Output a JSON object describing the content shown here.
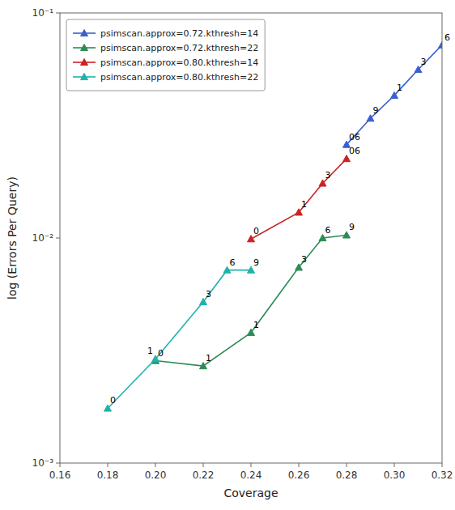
{
  "chart_data": {
    "type": "line",
    "xlabel": "Coverage",
    "ylabel": "log (Errors Per Query)",
    "log": "y",
    "xlim": [
      0.16,
      0.32
    ],
    "ylim": [
      0.001,
      0.1
    ],
    "xticks": [
      0.16,
      0.18,
      {
        "value": 0.2,
        "label": "0.20"
      },
      0.22,
      0.24,
      0.26,
      0.28,
      {
        "value": 0.3,
        "label": "0.30"
      },
      0.32
    ],
    "yticks": [
      {
        "value": 0.001,
        "label": "10⁻³"
      },
      {
        "value": 0.01,
        "label": "10⁻²"
      },
      {
        "value": 0.1,
        "label": "10⁻¹"
      }
    ],
    "grid": false,
    "legend": "upper left",
    "marker": "triangle",
    "series": [
      {
        "name": "psimscan.approx=0.72.kthresh=14",
        "color": "#3a5fcd",
        "x": [
          0.28,
          0.29,
          0.3,
          0.31,
          0.32
        ],
        "values": [
          0.026,
          0.034,
          0.043,
          0.056,
          0.072
        ],
        "annotations": [
          {
            "x": 0.28,
            "y": 0.026,
            "text": "06"
          },
          {
            "x": 0.29,
            "y": 0.034,
            "text": "9"
          },
          {
            "x": 0.3,
            "y": 0.043,
            "text": "1"
          },
          {
            "x": 0.31,
            "y": 0.056,
            "text": "3"
          },
          {
            "x": 0.32,
            "y": 0.072,
            "text": "6"
          }
        ]
      },
      {
        "name": "psimscan.approx=0.72.kthresh=22",
        "color": "#2e8b57",
        "x": [
          0.2,
          0.22,
          0.24,
          0.26,
          0.27,
          0.28
        ],
        "values": [
          0.00285,
          0.0027,
          0.0038,
          0.0074,
          0.01,
          0.0103
        ],
        "annotations": [
          {
            "x": 0.2,
            "y": 0.00285,
            "text": "0"
          },
          {
            "x": 0.22,
            "y": 0.0027,
            "text": "1"
          },
          {
            "x": 0.24,
            "y": 0.0038,
            "text": "1"
          },
          {
            "x": 0.26,
            "y": 0.0074,
            "text": "3"
          },
          {
            "x": 0.27,
            "y": 0.01,
            "text": "6"
          },
          {
            "x": 0.28,
            "y": 0.0103,
            "text": "9"
          }
        ]
      },
      {
        "name": "psimscan.approx=0.80.kthresh=14",
        "color": "#cc2222",
        "x": [
          0.24,
          0.26,
          0.27,
          0.28
        ],
        "values": [
          0.0099,
          0.013,
          0.0175,
          0.0225
        ],
        "annotations": [
          {
            "x": 0.24,
            "y": 0.0099,
            "text": "0"
          },
          {
            "x": 0.26,
            "y": 0.013,
            "text": "1"
          },
          {
            "x": 0.27,
            "y": 0.0175,
            "text": "3"
          },
          {
            "x": 0.28,
            "y": 0.0225,
            "text": "06"
          }
        ]
      },
      {
        "name": "psimscan.approx=0.80.kthresh=22",
        "color": "#20b2aa",
        "x": [
          0.18,
          0.2,
          0.22,
          0.23,
          0.24
        ],
        "values": [
          0.00175,
          0.0029,
          0.0052,
          0.0072,
          0.0072
        ],
        "annotations": [
          {
            "x": 0.18,
            "y": 0.00175,
            "text": "0"
          },
          {
            "x": 0.2,
            "y": 0.0029,
            "text": "1"
          },
          {
            "x": 0.22,
            "y": 0.0052,
            "text": "3"
          },
          {
            "x": 0.23,
            "y": 0.0072,
            "text": "6"
          },
          {
            "x": 0.24,
            "y": 0.0072,
            "text": "9"
          }
        ]
      }
    ]
  }
}
